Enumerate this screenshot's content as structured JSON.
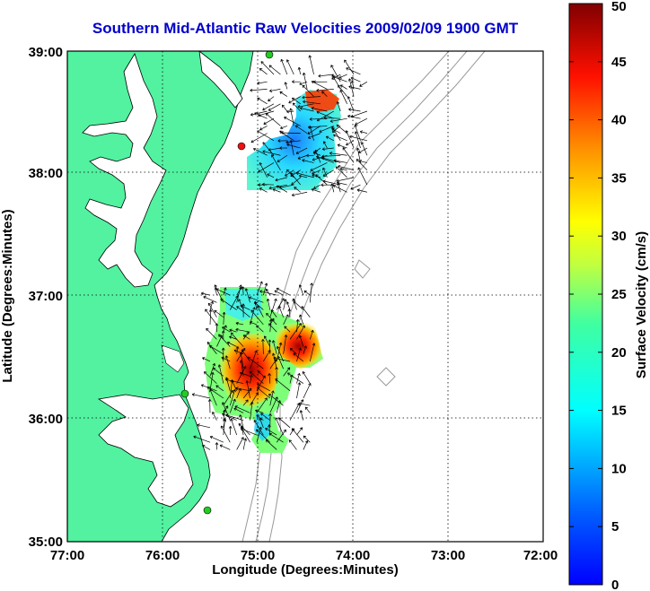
{
  "title": "Southern Mid-Atlantic Raw Velocities 2009/02/09 1900 GMT",
  "xlabel": "Longitude (Degrees:Minutes)",
  "ylabel": "Latitude (Degrees:Minutes)",
  "colorbar_label": "Surface Velocity (cm/s)",
  "x_ticks": [
    "77:00",
    "76:00",
    "75:00",
    "74:00",
    "73:00",
    "72:00"
  ],
  "y_ticks": [
    "39:00",
    "38:00",
    "37:00",
    "36:00",
    "35:00"
  ],
  "colorbar_ticks": [
    "0",
    "5",
    "10",
    "15",
    "20",
    "25",
    "30",
    "35",
    "40",
    "45",
    "50"
  ],
  "colors": {
    "land": "#52f2a0",
    "water": "#ffffff",
    "title": "#0000cc",
    "bathymetry": "#999999",
    "station_green": "#22cc22",
    "station_red": "#ee1111"
  },
  "chart_data": {
    "type": "heatmap",
    "title": "Southern Mid-Atlantic Raw Velocities 2009/02/09 1900 GMT",
    "xlabel": "Longitude (Degrees:Minutes)",
    "ylabel": "Latitude (Degrees:Minutes)",
    "xlim": [
      -77,
      -72
    ],
    "ylim": [
      35,
      39
    ],
    "grid": true,
    "colorbar": {
      "label": "Surface Velocity (cm/s)",
      "range": [
        0,
        50
      ],
      "colormap": "jet"
    },
    "stations": [
      {
        "lon": -74.87,
        "lat": 38.96,
        "color": "green"
      },
      {
        "lon": -75.15,
        "lat": 38.22,
        "color": "red"
      },
      {
        "lon": -75.53,
        "lat": 36.17,
        "color": "green"
      },
      {
        "lon": -75.35,
        "lat": 35.27,
        "color": "green"
      }
    ],
    "velocity_regions": [
      {
        "name": "north",
        "lon_range": [
          -74.9,
          -73.8
        ],
        "lat_range": [
          37.85,
          38.85
        ],
        "speed_range_cm_s": [
          5,
          45
        ]
      },
      {
        "name": "south",
        "lon_range": [
          -75.5,
          -74.4
        ],
        "lat_range": [
          35.75,
          37.05
        ],
        "speed_range_cm_s": [
          10,
          50
        ]
      }
    ]
  }
}
